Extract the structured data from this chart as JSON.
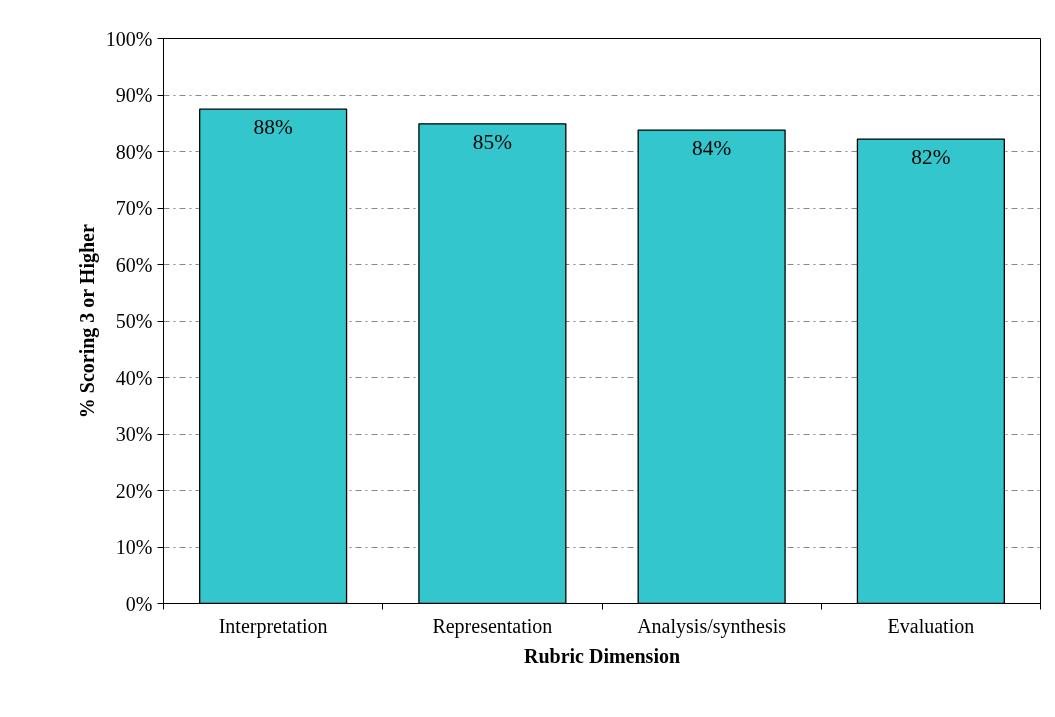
{
  "chart_data": {
    "type": "bar",
    "xlabel": "Rubric Dimension",
    "ylabel": "% Scoring 3 or Higher",
    "categories": [
      "Interpretation",
      "Representation",
      "Analysis/synthesis",
      "Evaluation"
    ],
    "values": [
      87.5,
      84.9,
      83.8,
      82.2
    ],
    "value_labels": [
      "88%",
      "85%",
      "84%",
      "82%"
    ],
    "color": "#33c6cc",
    "ylim": [
      0,
      100
    ],
    "yticks": [
      {
        "value": 0,
        "label": "0%"
      },
      {
        "value": 10,
        "label": "10%"
      },
      {
        "value": 20,
        "label": "20%"
      },
      {
        "value": 30,
        "label": "30%"
      },
      {
        "value": 40,
        "label": "40%"
      },
      {
        "value": 50,
        "label": "50%"
      },
      {
        "value": 60,
        "label": "60%"
      },
      {
        "value": 70,
        "label": "70%"
      },
      {
        "value": 80,
        "label": "80%"
      },
      {
        "value": 90,
        "label": "90%"
      },
      {
        "value": 100,
        "label": "100%"
      }
    ],
    "grid": "y"
  }
}
